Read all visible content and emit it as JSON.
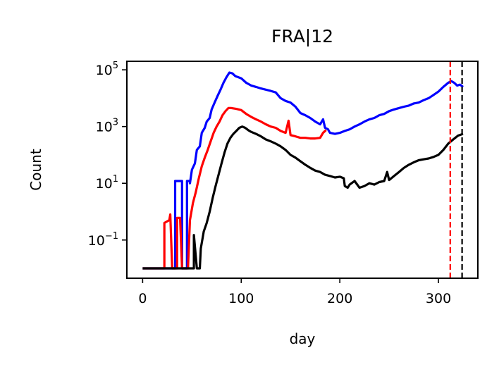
{
  "chart_data": {
    "type": "line",
    "title": "FRA|12",
    "xlabel": "day",
    "ylabel": "Count",
    "xlim": [
      -16,
      340
    ],
    "ylim": [
      0.0045,
      200000
    ],
    "yscale": "log",
    "grid": false,
    "x_ticks": [
      {
        "value": 0,
        "label": "0"
      },
      {
        "value": 100,
        "label": "100"
      },
      {
        "value": 200,
        "label": "200"
      },
      {
        "value": 300,
        "label": "300"
      }
    ],
    "y_ticks": [
      {
        "value": 0.1,
        "base": "10",
        "exp": "−1"
      },
      {
        "value": 10,
        "base": "10",
        "exp": "1"
      },
      {
        "value": 1000,
        "base": "10",
        "exp": "3"
      },
      {
        "value": 100000,
        "base": "10",
        "exp": "5"
      }
    ],
    "series": [
      {
        "color": "#0000ff",
        "points": [
          [
            0,
            0.01
          ],
          [
            33,
            0.01
          ],
          [
            33,
            12
          ],
          [
            40,
            12
          ],
          [
            40,
            0.01
          ],
          [
            45,
            0.01
          ],
          [
            45,
            12
          ],
          [
            48,
            12
          ],
          [
            48,
            10
          ],
          [
            50,
            30
          ],
          [
            53,
            50
          ],
          [
            55,
            150
          ],
          [
            58,
            200
          ],
          [
            60,
            600
          ],
          [
            63,
            900
          ],
          [
            65,
            1500
          ],
          [
            68,
            2000
          ],
          [
            70,
            4000
          ],
          [
            73,
            7000
          ],
          [
            76,
            12000
          ],
          [
            79,
            20000
          ],
          [
            82,
            35000
          ],
          [
            85,
            55000
          ],
          [
            88,
            80000
          ],
          [
            91,
            75000
          ],
          [
            94,
            60000
          ],
          [
            97,
            55000
          ],
          [
            100,
            50000
          ],
          [
            105,
            35000
          ],
          [
            110,
            28000
          ],
          [
            115,
            25000
          ],
          [
            120,
            22000
          ],
          [
            125,
            20000
          ],
          [
            130,
            18000
          ],
          [
            135,
            16000
          ],
          [
            140,
            10000
          ],
          [
            145,
            8000
          ],
          [
            150,
            7000
          ],
          [
            155,
            5000
          ],
          [
            160,
            3000
          ],
          [
            165,
            2500
          ],
          [
            170,
            2000
          ],
          [
            175,
            1500
          ],
          [
            180,
            1200
          ],
          [
            183,
            1800
          ],
          [
            185,
            900
          ],
          [
            188,
            800
          ],
          [
            190,
            600
          ],
          [
            195,
            550
          ],
          [
            200,
            600
          ],
          [
            205,
            700
          ],
          [
            210,
            800
          ],
          [
            215,
            1000
          ],
          [
            220,
            1200
          ],
          [
            225,
            1500
          ],
          [
            230,
            1800
          ],
          [
            235,
            2000
          ],
          [
            240,
            2500
          ],
          [
            245,
            2800
          ],
          [
            250,
            3500
          ],
          [
            255,
            4000
          ],
          [
            260,
            4500
          ],
          [
            265,
            5000
          ],
          [
            270,
            5500
          ],
          [
            275,
            6500
          ],
          [
            280,
            7000
          ],
          [
            285,
            8500
          ],
          [
            290,
            10000
          ],
          [
            295,
            13000
          ],
          [
            300,
            17000
          ],
          [
            305,
            25000
          ],
          [
            310,
            35000
          ],
          [
            313,
            40000
          ],
          [
            316,
            35000
          ],
          [
            319,
            28000
          ],
          [
            322,
            30000
          ],
          [
            325,
            25000
          ]
        ]
      },
      {
        "color": "#ff0000",
        "points": [
          [
            0,
            0.01
          ],
          [
            22,
            0.01
          ],
          [
            22,
            0.4
          ],
          [
            27,
            0.5
          ],
          [
            28,
            0.8
          ],
          [
            30,
            0.01
          ],
          [
            35,
            0.01
          ],
          [
            35,
            0.6
          ],
          [
            38,
            0.6
          ],
          [
            40,
            0.01
          ],
          [
            46,
            0.01
          ],
          [
            48,
            0.5
          ],
          [
            51,
            2
          ],
          [
            54,
            5
          ],
          [
            57,
            15
          ],
          [
            60,
            40
          ],
          [
            63,
            80
          ],
          [
            66,
            150
          ],
          [
            69,
            300
          ],
          [
            72,
            600
          ],
          [
            75,
            1000
          ],
          [
            78,
            1500
          ],
          [
            81,
            2500
          ],
          [
            84,
            3500
          ],
          [
            87,
            4500
          ],
          [
            90,
            4500
          ],
          [
            95,
            4200
          ],
          [
            100,
            3800
          ],
          [
            105,
            2800
          ],
          [
            110,
            2200
          ],
          [
            115,
            1800
          ],
          [
            120,
            1500
          ],
          [
            125,
            1200
          ],
          [
            130,
            1000
          ],
          [
            135,
            900
          ],
          [
            140,
            700
          ],
          [
            145,
            600
          ],
          [
            148,
            1600
          ],
          [
            150,
            500
          ],
          [
            155,
            450
          ],
          [
            160,
            400
          ],
          [
            165,
            400
          ],
          [
            170,
            380
          ],
          [
            175,
            380
          ],
          [
            180,
            400
          ],
          [
            183,
            600
          ],
          [
            186,
            750
          ]
        ]
      },
      {
        "color": "#000000",
        "points": [
          [
            0,
            0.01
          ],
          [
            52,
            0.01
          ],
          [
            52,
            0.15
          ],
          [
            55,
            0.01
          ],
          [
            58,
            0.01
          ],
          [
            59,
            0.05
          ],
          [
            62,
            0.2
          ],
          [
            65,
            0.4
          ],
          [
            68,
            1
          ],
          [
            71,
            3
          ],
          [
            74,
            8
          ],
          [
            77,
            20
          ],
          [
            80,
            50
          ],
          [
            83,
            120
          ],
          [
            86,
            250
          ],
          [
            89,
            400
          ],
          [
            92,
            550
          ],
          [
            95,
            700
          ],
          [
            98,
            900
          ],
          [
            101,
            1000
          ],
          [
            104,
            900
          ],
          [
            107,
            750
          ],
          [
            110,
            650
          ],
          [
            115,
            550
          ],
          [
            120,
            450
          ],
          [
            125,
            350
          ],
          [
            130,
            300
          ],
          [
            135,
            250
          ],
          [
            140,
            200
          ],
          [
            145,
            150
          ],
          [
            150,
            100
          ],
          [
            155,
            80
          ],
          [
            160,
            60
          ],
          [
            165,
            45
          ],
          [
            170,
            35
          ],
          [
            175,
            28
          ],
          [
            180,
            25
          ],
          [
            185,
            20
          ],
          [
            190,
            18
          ],
          [
            195,
            16
          ],
          [
            200,
            17
          ],
          [
            204,
            15
          ],
          [
            205,
            8
          ],
          [
            208,
            7
          ],
          [
            210,
            9
          ],
          [
            215,
            12
          ],
          [
            220,
            7
          ],
          [
            225,
            8
          ],
          [
            230,
            10
          ],
          [
            235,
            9
          ],
          [
            240,
            11
          ],
          [
            245,
            12
          ],
          [
            248,
            25
          ],
          [
            250,
            13
          ],
          [
            255,
            18
          ],
          [
            260,
            25
          ],
          [
            265,
            35
          ],
          [
            270,
            45
          ],
          [
            275,
            55
          ],
          [
            280,
            65
          ],
          [
            285,
            70
          ],
          [
            290,
            75
          ],
          [
            295,
            85
          ],
          [
            300,
            100
          ],
          [
            305,
            150
          ],
          [
            310,
            250
          ],
          [
            315,
            350
          ],
          [
            320,
            480
          ],
          [
            325,
            550
          ]
        ]
      }
    ],
    "vlines": [
      {
        "x": 312,
        "color": "#ff0000",
        "style": "dashed"
      },
      {
        "x": 324,
        "color": "#000000",
        "style": "dashed"
      }
    ]
  }
}
